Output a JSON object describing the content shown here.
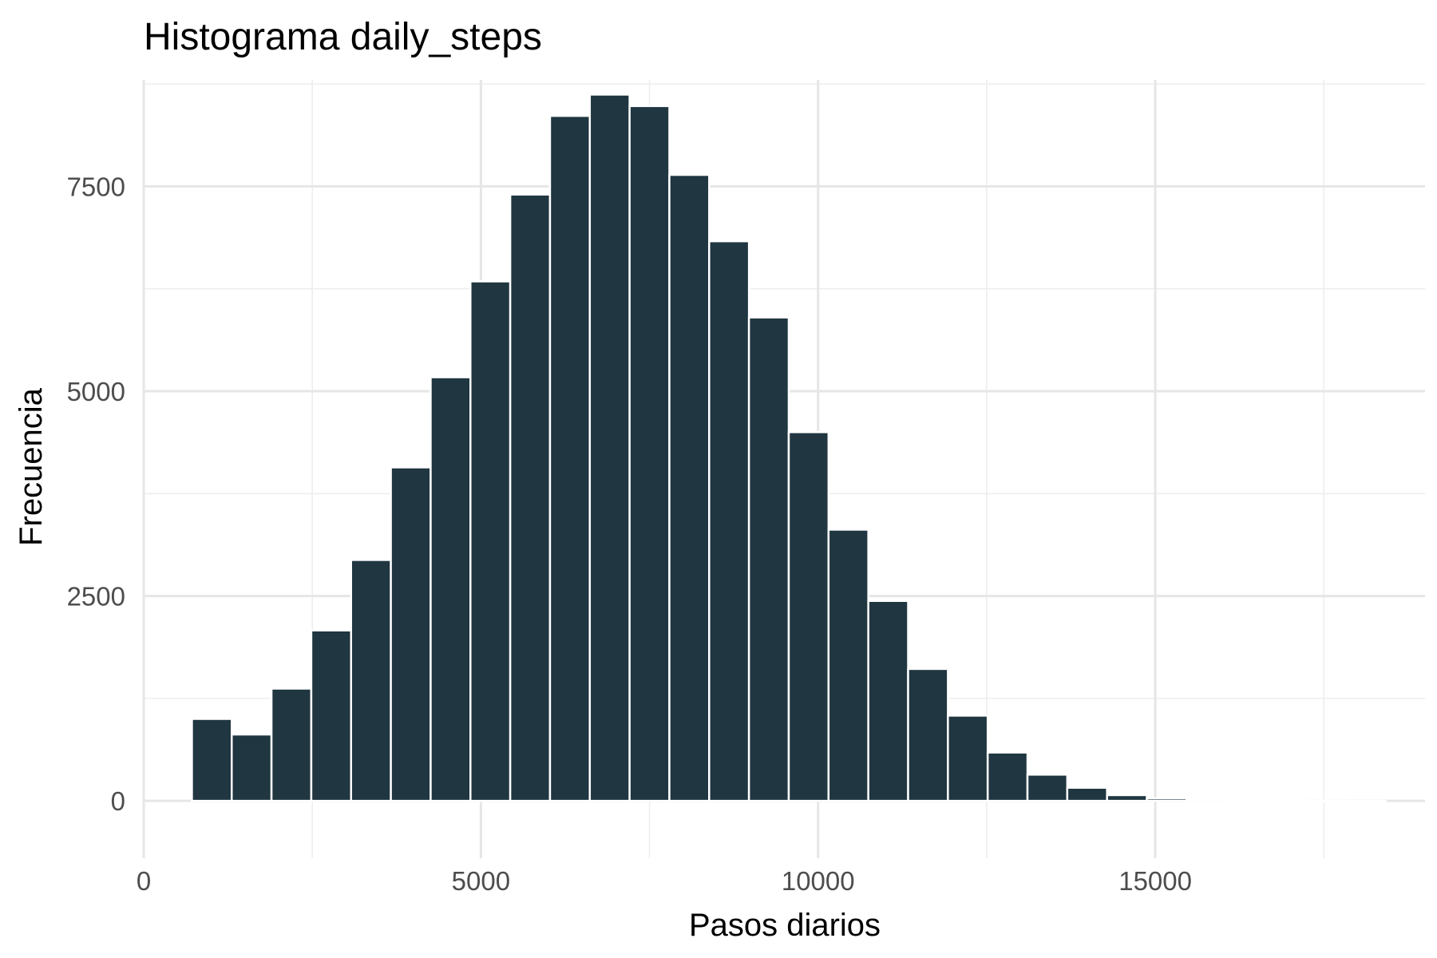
{
  "chart_data": {
    "type": "bar",
    "title": "Histograma daily_steps",
    "xlabel": "Pasos diarios",
    "ylabel": "Frecuencia",
    "xlim": [
      0,
      19000
    ],
    "ylim": [
      -700,
      8800
    ],
    "x_ticks": [
      0,
      5000,
      10000,
      15000
    ],
    "x_tick_labels": [
      "0",
      "5000",
      "10000",
      "15000"
    ],
    "y_ticks": [
      0,
      2500,
      5000,
      7500
    ],
    "y_tick_labels": [
      "0",
      "2500",
      "5000",
      "7500"
    ],
    "grid": true,
    "bin_width": 590,
    "bins": [
      {
        "x": 1010,
        "value": 1000
      },
      {
        "x": 1600,
        "value": 810
      },
      {
        "x": 2190,
        "value": 1370
      },
      {
        "x": 2780,
        "value": 2080
      },
      {
        "x": 3370,
        "value": 2940
      },
      {
        "x": 3960,
        "value": 4070
      },
      {
        "x": 4550,
        "value": 5170
      },
      {
        "x": 5140,
        "value": 6340
      },
      {
        "x": 5730,
        "value": 7400
      },
      {
        "x": 6320,
        "value": 8360
      },
      {
        "x": 6910,
        "value": 8620
      },
      {
        "x": 7500,
        "value": 8480
      },
      {
        "x": 8090,
        "value": 7640
      },
      {
        "x": 8680,
        "value": 6830
      },
      {
        "x": 9270,
        "value": 5900
      },
      {
        "x": 9860,
        "value": 4500
      },
      {
        "x": 10450,
        "value": 3310
      },
      {
        "x": 11040,
        "value": 2440
      },
      {
        "x": 11630,
        "value": 1610
      },
      {
        "x": 12220,
        "value": 1040
      },
      {
        "x": 12810,
        "value": 590
      },
      {
        "x": 13400,
        "value": 320
      },
      {
        "x": 13990,
        "value": 160
      },
      {
        "x": 14580,
        "value": 70
      },
      {
        "x": 15170,
        "value": 30
      },
      {
        "x": 15760,
        "value": 10
      },
      {
        "x": 16350,
        "value": 5
      },
      {
        "x": 16940,
        "value": 3
      },
      {
        "x": 17530,
        "value": 2
      },
      {
        "x": 18120,
        "value": 1
      }
    ],
    "bar_color": "#203641",
    "bar_outline_color": "#ffffff",
    "background_color": "#ffffff",
    "grid_color": "#e6e6e6"
  }
}
